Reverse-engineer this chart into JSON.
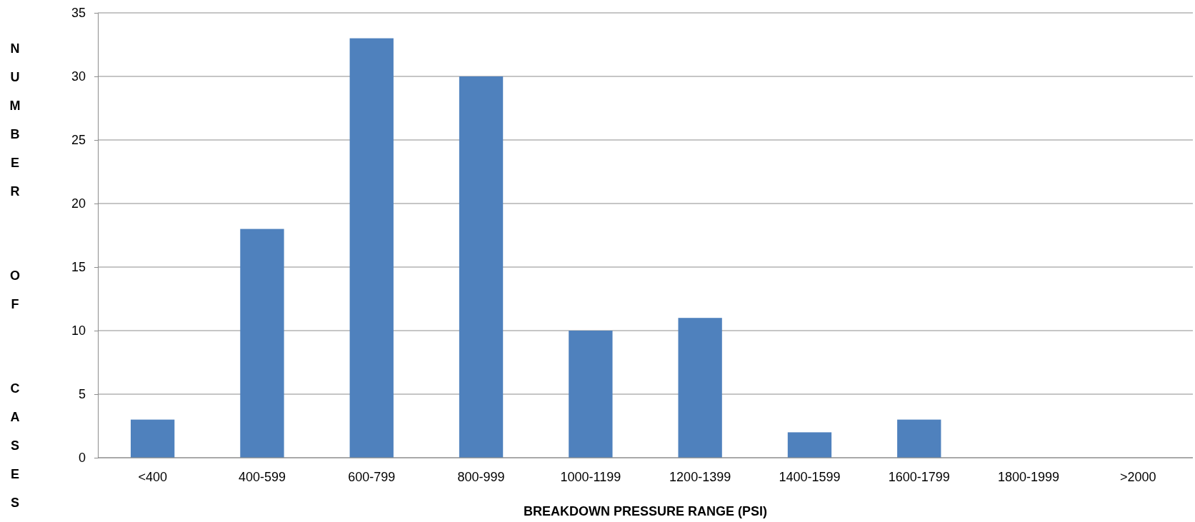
{
  "chart_data": {
    "type": "bar",
    "xlabel": "BREAKDOWN PRESSURE RANGE (PSI)",
    "ylabel": "NUMBER OF CASES",
    "categories": [
      "<400",
      "400-599",
      "600-799",
      "800-999",
      "1000-1199",
      "1200-1399",
      "1400-1599",
      "1600-1799",
      "1800-1999",
      ">2000"
    ],
    "values": [
      3,
      18,
      33,
      30,
      10,
      11,
      2,
      3,
      0,
      0
    ],
    "color": "#4f81bd",
    "ylim": [
      0,
      35
    ],
    "yticks": [
      0,
      5,
      10,
      15,
      20,
      25,
      30,
      35
    ],
    "grid": "y"
  }
}
